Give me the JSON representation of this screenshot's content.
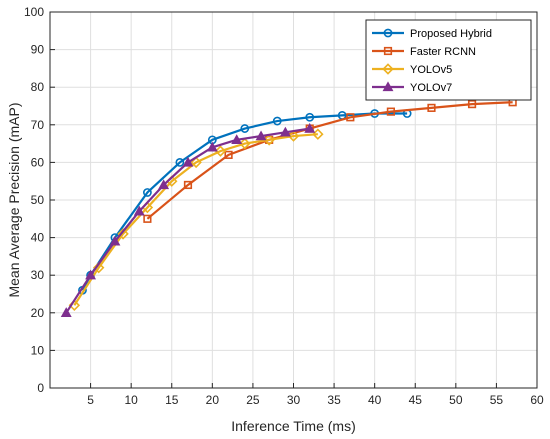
{
  "chart_data": {
    "type": "line",
    "title": "",
    "xlabel": "Inference Time (ms)",
    "ylabel": "Mean Average Precision (mAP)",
    "xlim": [
      0,
      60
    ],
    "ylim": [
      0,
      100
    ],
    "xticks": [
      "5",
      "10",
      "15",
      "20",
      "25",
      "30",
      "35",
      "40",
      "45",
      "50",
      "55",
      "60"
    ],
    "yticks": [
      "0",
      "10",
      "20",
      "30",
      "40",
      "50",
      "60",
      "70",
      "80",
      "90",
      "100"
    ],
    "grid": true,
    "legend_position": "top-right",
    "series": [
      {
        "name": "Proposed Hybrid",
        "color": "#0072BD",
        "marker": "circle",
        "x": [
          4,
          5,
          8,
          12,
          16,
          20,
          24,
          28,
          32,
          36,
          40,
          44
        ],
        "y": [
          26,
          30,
          40,
          52,
          60,
          66,
          69,
          71,
          72,
          72.5,
          73,
          73
        ]
      },
      {
        "name": "Faster RCNN",
        "color": "#D95319",
        "marker": "square",
        "x": [
          12,
          17,
          22,
          27,
          32,
          37,
          42,
          47,
          52,
          57
        ],
        "y": [
          45,
          54,
          62,
          66,
          69,
          72,
          73.5,
          74.5,
          75.5,
          76
        ]
      },
      {
        "name": "YOLOv5",
        "color": "#EDB120",
        "marker": "diamond",
        "x": [
          3,
          6,
          9,
          12,
          15,
          18,
          21,
          24,
          27,
          30,
          33
        ],
        "y": [
          22,
          32,
          41,
          48,
          55,
          60,
          63,
          65,
          66,
          67,
          67.5
        ]
      },
      {
        "name": "YOLOv7",
        "color": "#7E2F8E",
        "marker": "triangle",
        "x": [
          2,
          5,
          8,
          11,
          14,
          17,
          20,
          23,
          26,
          29,
          32
        ],
        "y": [
          20,
          30,
          39,
          47,
          54,
          60,
          64,
          66,
          67,
          68,
          69
        ]
      }
    ]
  }
}
